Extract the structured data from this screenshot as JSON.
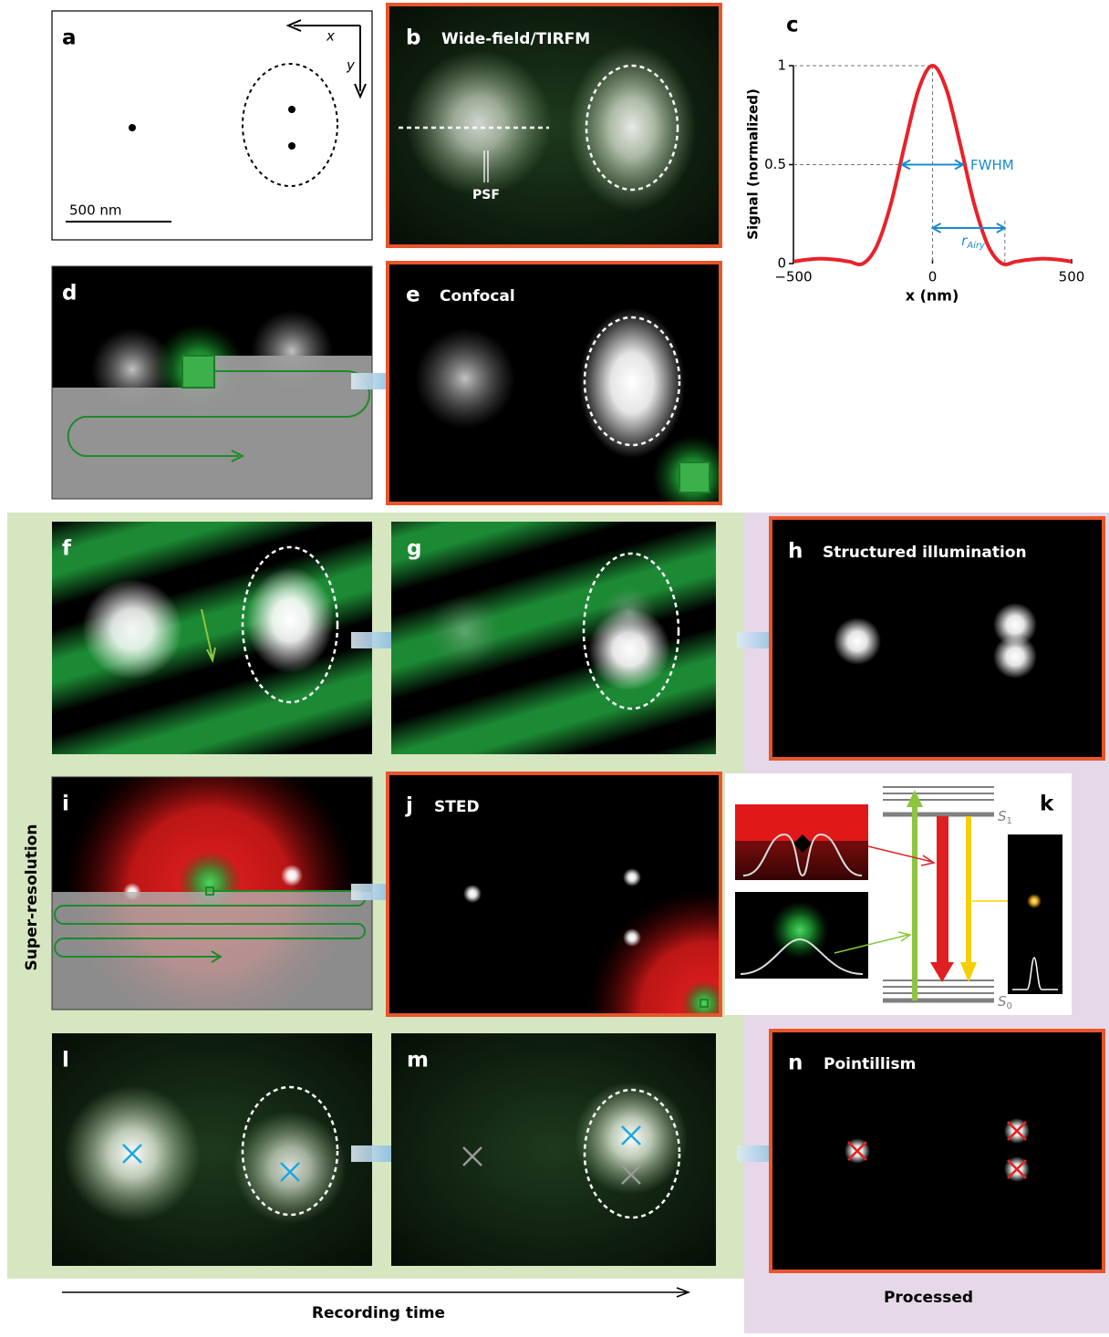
{
  "panels": {
    "a": {
      "label": "a",
      "scale_bar": "500 nm",
      "x_axis": "x",
      "y_axis": "y"
    },
    "b": {
      "label": "b",
      "title": "Wide-field/TIRFM",
      "psf": "PSF"
    },
    "c": {
      "label": "c"
    },
    "d": {
      "label": "d"
    },
    "e": {
      "label": "e",
      "title": "Confocal"
    },
    "f": {
      "label": "f"
    },
    "g": {
      "label": "g"
    },
    "h": {
      "label": "h",
      "title": "Structured illumination"
    },
    "i": {
      "label": "i"
    },
    "j": {
      "label": "j",
      "title": "STED"
    },
    "k": {
      "label": "k",
      "s1": "S",
      "s1_sub": "1",
      "s0": "S",
      "s0_sub": "0"
    },
    "l": {
      "label": "l"
    },
    "m": {
      "label": "m"
    },
    "n": {
      "label": "n",
      "title": "Pointillism"
    }
  },
  "side_label": "Super-resolution",
  "time_axis": "Recording time",
  "processed_label": "Processed",
  "chart_data": {
    "type": "line",
    "y_label": "Signal (normalized)",
    "x_label": "x (nm)",
    "x": [
      -500,
      -450,
      -400,
      -350,
      -300,
      -250,
      -200,
      -150,
      -100,
      -50,
      0,
      50,
      100,
      150,
      200,
      250,
      300,
      350,
      400,
      450,
      500
    ],
    "series": [
      {
        "color": "#e8222a",
        "values": [
          0.01,
          0.02,
          0.025,
          0.02,
          0.01,
          0.0,
          0.09,
          0.3,
          0.6,
          0.88,
          1,
          0.88,
          0.6,
          0.3,
          0.09,
          0.0,
          0.01,
          0.02,
          0.025,
          0.02,
          0.01
        ]
      }
    ],
    "xlim": [
      -500,
      500
    ],
    "ylim": [
      0,
      1
    ],
    "xticks": [
      {
        "value": -500,
        "label": "−500"
      },
      0,
      500
    ],
    "yticks": [
      0,
      0.5,
      1
    ],
    "annotations": [
      {
        "label": "FWHM",
        "x": [
          -110,
          110
        ],
        "y": 0.5
      },
      {
        "label": "r",
        "sub": "Airy",
        "x": [
          0,
          260
        ],
        "y": 0.18
      }
    ],
    "annotation_color": "#1a8ad0"
  }
}
